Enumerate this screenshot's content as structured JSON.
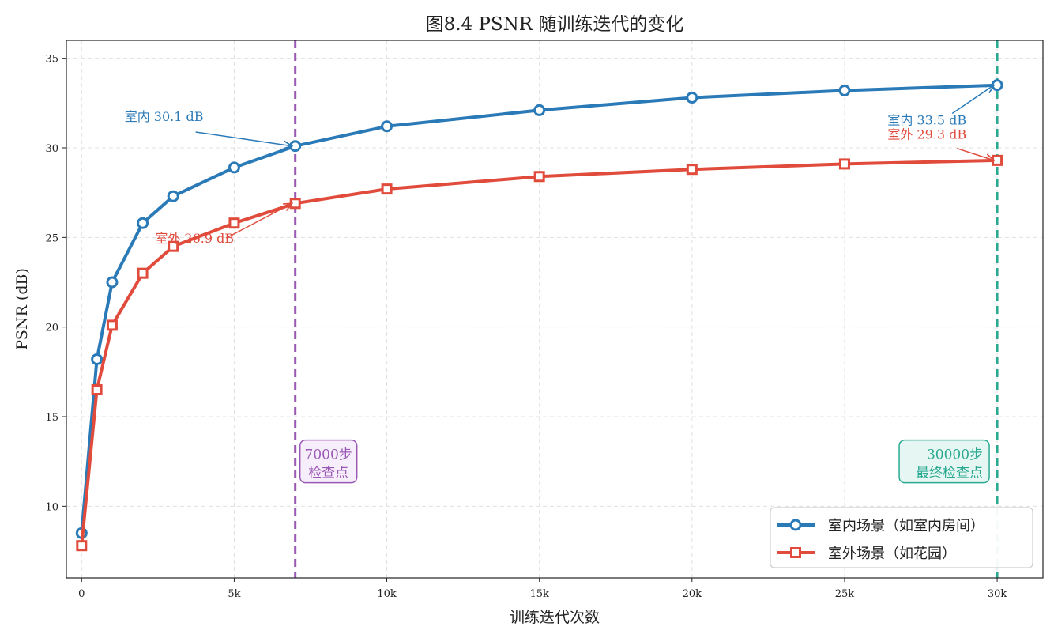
{
  "chart_data": {
    "type": "line",
    "title": "图8.4  PSNR 随训练迭代的变化",
    "xlabel": "训练迭代次数",
    "ylabel": "PSNR (dB)",
    "xlim": [
      -500,
      31500
    ],
    "ylim": [
      6,
      36
    ],
    "xticks": [
      0,
      5000,
      10000,
      15000,
      20000,
      25000,
      30000
    ],
    "xtick_labels": [
      "0",
      "5k",
      "10k",
      "15k",
      "20k",
      "25k",
      "30k"
    ],
    "yticks": [
      10,
      15,
      20,
      25,
      30,
      35
    ],
    "ytick_labels": [
      "10",
      "15",
      "20",
      "25",
      "30",
      "35"
    ],
    "grid": true,
    "legend_position": "bottom-right",
    "x": [
      0,
      500,
      1000,
      2000,
      3000,
      5000,
      7000,
      10000,
      15000,
      20000,
      25000,
      30000
    ],
    "series": [
      {
        "name": "室内场景（如室内房间）",
        "marker": "circle",
        "color": "#2a7ab8",
        "values": [
          8.5,
          18.2,
          22.5,
          25.8,
          27.3,
          28.9,
          30.1,
          31.2,
          32.1,
          32.8,
          33.2,
          33.5
        ]
      },
      {
        "name": "室外场景（如花园）",
        "marker": "square",
        "color": "#e04b3c",
        "values": [
          7.8,
          16.5,
          20.1,
          23.0,
          24.5,
          25.8,
          26.9,
          27.7,
          28.4,
          28.8,
          29.1,
          29.3
        ]
      }
    ],
    "vlines": [
      {
        "x": 7000,
        "color": "#9b59b6",
        "label": [
          "7000步",
          "检查点"
        ],
        "label_y": 12.5
      },
      {
        "x": 30000,
        "color": "#2aa991",
        "label": [
          "30000步",
          "最终检查点"
        ],
        "label_y": 12.5
      }
    ],
    "annotations": [
      {
        "text": "室内 30.1 dB",
        "color": "#2a7ab8",
        "xy": [
          7000,
          30.1
        ],
        "xytext": [
          2700,
          31.5
        ],
        "align": "middle",
        "arrow": true
      },
      {
        "text": "室外 26.9 dB",
        "color": "#e04b3c",
        "xy": [
          7000,
          26.9
        ],
        "xytext": [
          3700,
          24.7
        ],
        "align": "middle",
        "arrow": true
      },
      {
        "text": "室内 33.5 dB",
        "color": "#2a7ab8",
        "xy": [
          30000,
          33.5
        ],
        "xytext": [
          27700,
          31.3
        ],
        "align": "middle",
        "arrow": true
      },
      {
        "text": "室外 29.3 dB",
        "color": "#e04b3c",
        "xy": [
          30000,
          29.3
        ],
        "xytext": [
          27700,
          30.5
        ],
        "align": "middle",
        "arrow": true
      }
    ]
  }
}
